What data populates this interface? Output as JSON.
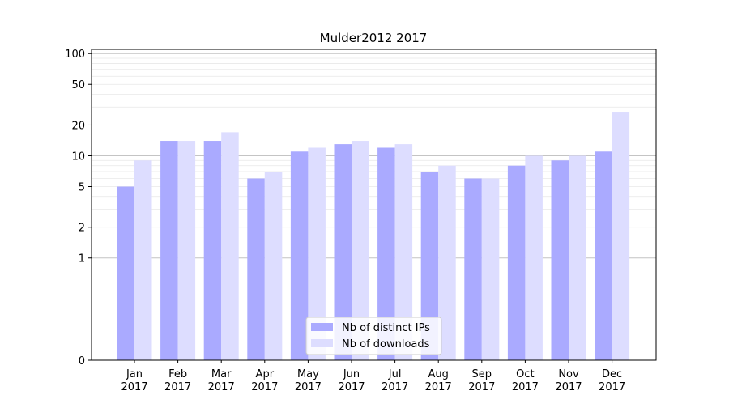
{
  "chart_data": {
    "type": "bar",
    "title": "Mulder2012 2017",
    "xlabel": "",
    "ylabel": "",
    "y_scale": "symlog",
    "ylim": [
      0,
      110
    ],
    "y_ticks": [
      0,
      1,
      2,
      5,
      10,
      20,
      50,
      100
    ],
    "y_tick_labels": [
      "0",
      "1",
      "2",
      "5",
      "10",
      "20",
      "50",
      "100"
    ],
    "grid": true,
    "legend_position": "bottom-center",
    "categories": [
      [
        "Jan",
        "2017"
      ],
      [
        "Feb",
        "2017"
      ],
      [
        "Mar",
        "2017"
      ],
      [
        "Apr",
        "2017"
      ],
      [
        "May",
        "2017"
      ],
      [
        "Jun",
        "2017"
      ],
      [
        "Jul",
        "2017"
      ],
      [
        "Aug",
        "2017"
      ],
      [
        "Sep",
        "2017"
      ],
      [
        "Oct",
        "2017"
      ],
      [
        "Nov",
        "2017"
      ],
      [
        "Dec",
        "2017"
      ]
    ],
    "series": [
      {
        "name": "Nb of distinct IPs",
        "color": "#aaaaff",
        "values": [
          5,
          14,
          14,
          6,
          11,
          13,
          12,
          7,
          6,
          8,
          9,
          11
        ]
      },
      {
        "name": "Nb of downloads",
        "color": "#ddddff",
        "values": [
          9,
          14,
          17,
          7,
          12,
          14,
          13,
          8,
          6,
          10,
          10,
          27
        ]
      }
    ]
  }
}
